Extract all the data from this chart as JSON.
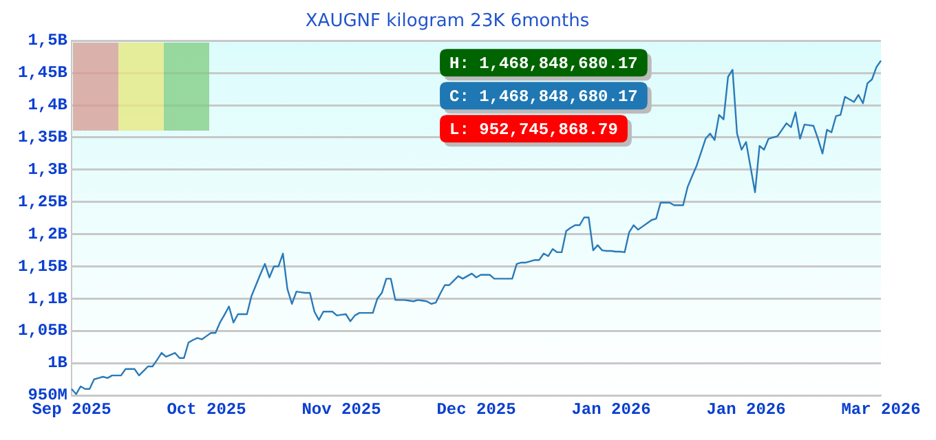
{
  "chart_data": {
    "type": "line",
    "title": "XAUGNF kilogram 23K 6months",
    "annotations": [
      "H: 1,468,848,680.17",
      "C: 1,468,848,680.17",
      "L: 952,745,868.79"
    ],
    "categories": [
      "Sep 2025",
      null,
      null,
      null,
      null,
      null,
      null,
      null,
      null,
      null,
      null,
      null,
      null,
      null,
      null,
      null,
      null,
      null,
      null,
      null,
      null,
      null,
      null,
      null,
      null,
      null,
      null,
      null,
      null,
      null,
      "Oct 2025",
      null,
      null,
      null,
      null,
      null,
      null,
      null,
      null,
      null,
      null,
      null,
      null,
      null,
      null,
      null,
      null,
      null,
      null,
      null,
      null,
      null,
      null,
      null,
      null,
      null,
      null,
      null,
      null,
      null,
      "Nov 2025",
      null,
      null,
      null,
      null,
      null,
      null,
      null,
      null,
      null,
      null,
      null,
      null,
      null,
      null,
      null,
      null,
      null,
      null,
      null,
      null,
      null,
      null,
      null,
      null,
      null,
      null,
      null,
      null,
      null,
      "Dec 2025",
      null,
      null,
      null,
      null,
      null,
      null,
      null,
      null,
      null,
      null,
      null,
      null,
      null,
      null,
      null,
      null,
      null,
      null,
      null,
      null,
      null,
      null,
      null,
      null,
      null,
      null,
      null,
      null,
      null,
      "Jan 2026",
      null,
      null,
      null,
      null,
      null,
      null,
      null,
      null,
      null,
      null,
      null,
      null,
      null,
      null,
      null,
      null,
      null,
      null,
      null,
      null,
      null,
      null,
      null,
      null,
      null,
      null,
      null,
      null,
      null,
      "Jan 2026",
      null,
      null,
      null,
      null,
      null,
      null,
      null,
      null,
      null,
      null,
      null,
      null,
      null,
      null,
      null,
      null,
      null,
      null,
      null,
      null,
      null,
      null,
      null,
      null,
      null,
      null,
      null,
      null,
      null,
      "Mar 2026"
    ],
    "series": [
      {
        "color": "#2a7ab8",
        "values": [
          960000000,
          952000000,
          964000000,
          960000000,
          960000000,
          975000000,
          977000000,
          979000000,
          977000000,
          981000000,
          981000000,
          981000000,
          991000000,
          991000000,
          991000000,
          981000000,
          988000000,
          995000000,
          995000000,
          1005000000,
          1016000000,
          1010000000,
          1013000000,
          1016000000,
          1008000000,
          1008000000,
          1032000000,
          1036000000,
          1039000000,
          1037000000,
          1042000000,
          1047000000,
          1047000000,
          1063000000,
          1075000000,
          1088000000,
          1063000000,
          1076000000,
          1076000000,
          1076000000,
          1104000000,
          1121000000,
          1138000000,
          1154000000,
          1133000000,
          1150000000,
          1150000000,
          1170000000,
          1115000000,
          1092000000,
          1111000000,
          1110000000,
          1109000000,
          1109000000,
          1080000000,
          1067000000,
          1080000000,
          1080000000,
          1080000000,
          1074000000,
          1075000000,
          1076000000,
          1065000000,
          1074000000,
          1078000000,
          1078000000,
          1078000000,
          1078000000,
          1100000000,
          1109000000,
          1131000000,
          1131000000,
          1098000000,
          1098000000,
          1098000000,
          1097000000,
          1096000000,
          1098000000,
          1097000000,
          1096000000,
          1092000000,
          1094000000,
          1108000000,
          1121000000,
          1121000000,
          1128000000,
          1135000000,
          1131000000,
          1135000000,
          1139000000,
          1133000000,
          1137000000,
          1137000000,
          1137000000,
          1131000000,
          1131000000,
          1131000000,
          1131000000,
          1131000000,
          1154000000,
          1156000000,
          1156000000,
          1158000000,
          1160000000,
          1160000000,
          1170000000,
          1166000000,
          1177000000,
          1172000000,
          1172000000,
          1205000000,
          1210000000,
          1214000000,
          1214000000,
          1226000000,
          1226000000,
          1175000000,
          1183000000,
          1175000000,
          1174000000,
          1174000000,
          1173000000,
          1173000000,
          1172000000,
          1203000000,
          1214000000,
          1207000000,
          1212000000,
          1217000000,
          1222000000,
          1224000000,
          1249000000,
          1249000000,
          1249000000,
          1245000000,
          1245000000,
          1245000000,
          1273000000,
          1290000000,
          1306000000,
          1327000000,
          1348000000,
          1356000000,
          1346000000,
          1385000000,
          1378000000,
          1444000000,
          1455000000,
          1356000000,
          1331000000,
          1343000000,
          1304000000,
          1265000000,
          1337000000,
          1331000000,
          1348000000,
          1350000000,
          1352000000,
          1362000000,
          1372000000,
          1366000000,
          1389000000,
          1348000000,
          1370000000,
          1369000000,
          1368000000,
          1348000000,
          1325000000,
          1362000000,
          1358000000,
          1383000000,
          1385000000,
          1413000000,
          1409000000,
          1405000000,
          1416000000,
          1403000000,
          1434000000,
          1440000000,
          1459000000,
          1469000000
        ]
      }
    ],
    "ylim": [
      950000000,
      1500000000
    ],
    "yticks": [
      {
        "value": 950000000,
        "label": "950M"
      },
      {
        "value": 1000000000,
        "label": "1B"
      },
      {
        "value": 1050000000,
        "label": "1,05B"
      },
      {
        "value": 1100000000,
        "label": "1,1B"
      },
      {
        "value": 1150000000,
        "label": "1,15B"
      },
      {
        "value": 1200000000,
        "label": "1,2B"
      },
      {
        "value": 1250000000,
        "label": "1,25B"
      },
      {
        "value": 1300000000,
        "label": "1,3B"
      },
      {
        "value": 1350000000,
        "label": "1,35B"
      },
      {
        "value": 1400000000,
        "label": "1,4B"
      },
      {
        "value": 1450000000,
        "label": "1,45B"
      },
      {
        "value": 1500000000,
        "label": "1,5B"
      }
    ],
    "grid": "y",
    "legend": false,
    "marker": "none",
    "line_style": "solid"
  }
}
